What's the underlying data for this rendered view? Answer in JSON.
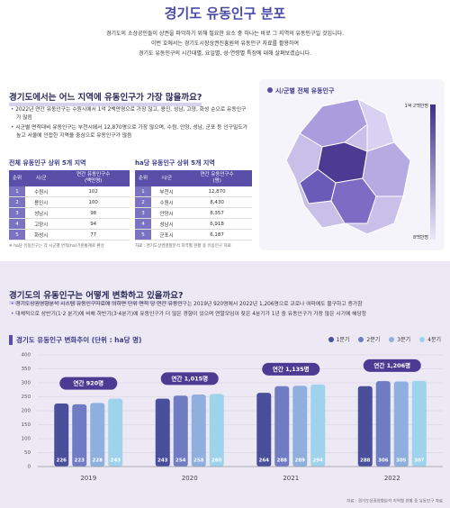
{
  "header": {
    "title": "경기도 유동인구 분포",
    "intro": [
      "경기도의 소상공인들이 상권을 파악하기 위해 필요한 요소 중 하나는 바로 그 지역의 유동인구일 것입니다.",
      "이번 호에서는 경기도시장상권진흥원의 유동인구 자료를 활용하여",
      "경기도 유동인구의 시간대별, 요일별, 성·연령별 특징에 대해 살펴보겠습니다."
    ]
  },
  "section1": {
    "heading": "경기도에서는 어느 지역에 유동인구가 가장 많을까요?",
    "bullets": [
      "2022년 연간 유동인구는 수원시에서 1억 2백만명으로 가장 많고, 용인, 성남, 고양, 화성 순으로 유동인구가 많음",
      "시군별 면적대비 유동인구는 부천시에서 12,870명으로 가장 많으며, 수원, 안양, 성남, 군포 등 인구밀도가 높고 서울에 인접한 지역을 중심으로 유동인구가 많음"
    ],
    "table1": {
      "title": "전체 유동인구 상위 5개 지역",
      "columns": [
        "순위",
        "시/군",
        "연간 유동인구수"
      ],
      "unit": "(백만명)",
      "rows": [
        [
          1,
          "수원시",
          102
        ],
        [
          2,
          "용인시",
          100
        ],
        [
          3,
          "성남시",
          98
        ],
        [
          4,
          "고양시",
          94
        ],
        [
          5,
          "화성시",
          77
        ]
      ],
      "note": "※ ha당 유동인구는 각 시군별 면적(ha)기준통계로 환산"
    },
    "table2": {
      "title": "ha당 유동인구 상위 5개 지역",
      "columns": [
        "순위",
        "시/군",
        "연간 유동인구수"
      ],
      "unit": "(명)",
      "rows": [
        [
          1,
          "부천시",
          "12,870"
        ],
        [
          2,
          "수원시",
          "8,430"
        ],
        [
          3,
          "안양시",
          "8,357"
        ],
        [
          4,
          "성남시",
          "6,918"
        ],
        [
          5,
          "군포시",
          "6,187"
        ]
      ],
      "note": "자료 : 경기도상권영향분석 지역별 현황 중 유동인구 자료"
    },
    "map": {
      "title": "시/군별 전체 유동인구",
      "legend_max": "1억 2백만명",
      "legend_min": "8백만명"
    }
  },
  "section2": {
    "heading": "경기도의 유동인구는 어떻게 변화하고 있을까요?",
    "bullets": [
      "경기도상권영향분석 시스템 유동인구자료에 의하면 단위 면적 당 연간 유동인구는 2019년 920명에서 2022년 1,206명으로 코로나 여파에도 불구하고 증가함",
      "대체적으로 상반기(1·2 분기)에 비해 하반기(3·4분기)에 유동인구가 더 많은 경향이 있으며 연말모임이 잦은 4분기가 1년 중 유동인구가 가장 많은 시기에 해당함"
    ]
  },
  "chart_data": {
    "type": "bar",
    "title": "경기도 유동인구 변화추이 (단위 : ha당 명)",
    "categories": [
      "2019",
      "2020",
      "2021",
      "2022"
    ],
    "series": [
      {
        "name": "1분기",
        "color": "#4a4f9c",
        "values": [
          226,
          243,
          264,
          288
        ]
      },
      {
        "name": "2분기",
        "color": "#6f7cc4",
        "values": [
          223,
          254,
          288,
          306
        ]
      },
      {
        "name": "3분기",
        "color": "#8fb0df",
        "values": [
          228,
          258,
          289,
          305
        ]
      },
      {
        "name": "4분기",
        "color": "#9fd3ec",
        "values": [
          243,
          260,
          294,
          307
        ]
      }
    ],
    "annotations": [
      "연간 920명",
      "연간 1,015명",
      "연간 1,135명",
      "연간 1,206명"
    ],
    "ylim": [
      0,
      400
    ],
    "yticks": [
      0,
      50,
      100,
      150,
      200,
      250,
      300,
      350,
      400
    ],
    "grid": true,
    "source": "자료 : 경기도상권영향분석 지역별 현황 중 유동인구 자료"
  }
}
